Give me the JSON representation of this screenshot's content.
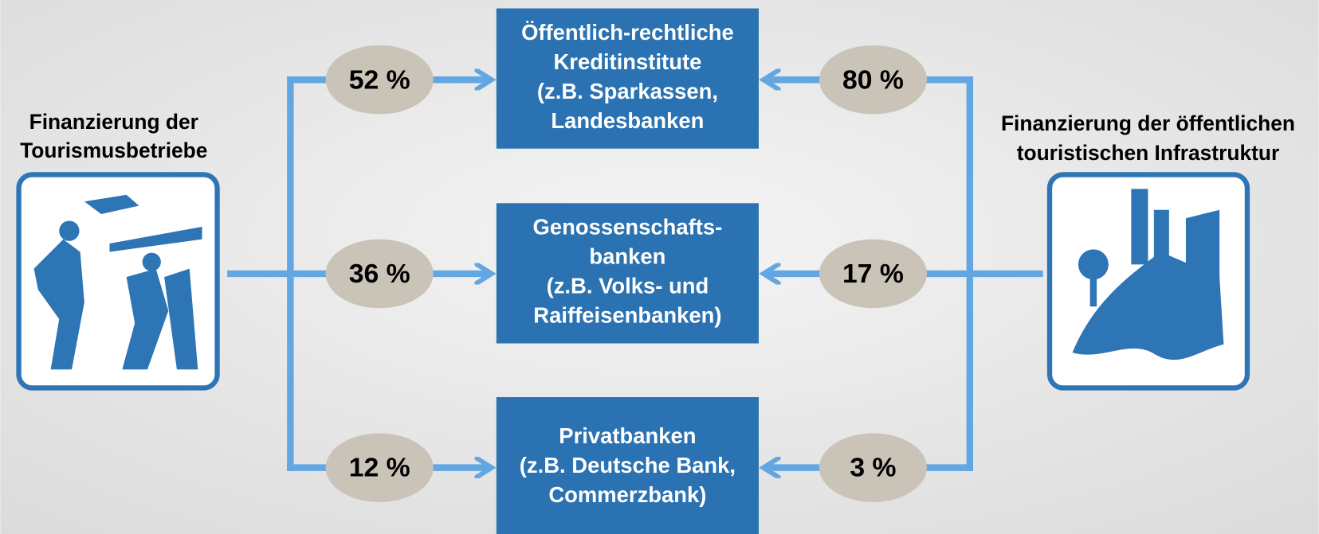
{
  "left": {
    "label": [
      "Finanzierung der",
      "Tourismusbetriebe"
    ]
  },
  "right": {
    "label": [
      "Finanzierung der öffentlichen",
      "touristischen Infrastruktur"
    ]
  },
  "banks": [
    {
      "lines": [
        "Öffentlich-rechtliche",
        "Kreditinstitute",
        "(z.B. Sparkassen,",
        "Landesbanken"
      ],
      "left_share": "52 %",
      "right_share": "80 %"
    },
    {
      "lines": [
        "Genossenschafts-",
        "banken",
        "(z.B. Volks- und",
        "Raiffeisenbanken)"
      ],
      "left_share": "36 %",
      "right_share": "17 %"
    },
    {
      "lines": [
        "Privatbanken",
        "(z.B. Deutsche Bank,",
        "Commerzbank)"
      ],
      "left_share": "12 %",
      "right_share": "3 %"
    }
  ]
}
